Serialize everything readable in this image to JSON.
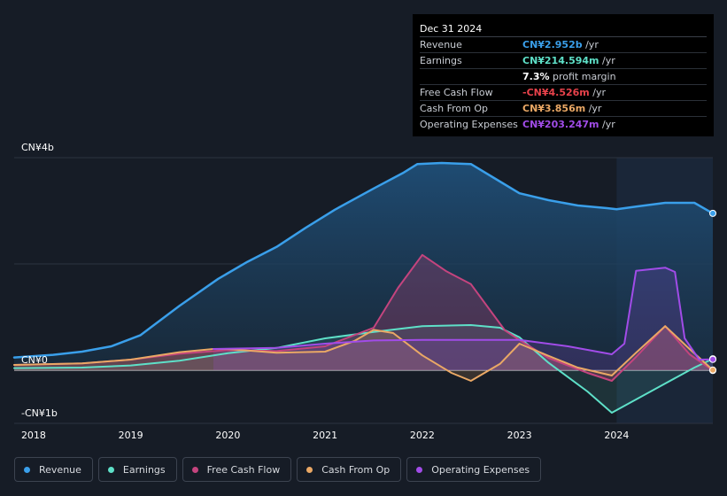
{
  "chart_data": {
    "type": "area",
    "title": "",
    "xlabel": "",
    "ylabel": "",
    "xlim": [
      2017.8,
      2024.99
    ],
    "ylim": [
      -1.0,
      4.0
    ],
    "y_unit": "CN¥ billions",
    "y_tick_labels": [
      {
        "value": 4,
        "label": "CN¥4b"
      },
      {
        "value": 0,
        "label": "CN¥0"
      },
      {
        "value": -1,
        "label": "-CN¥1b"
      }
    ],
    "x_ticks": [
      2018,
      2019,
      2020,
      2021,
      2022,
      2023,
      2024
    ],
    "x_tick_labels": [
      "2018",
      "2019",
      "2020",
      "2021",
      "2022",
      "2023",
      "2024"
    ],
    "forecast_shade_start": 2024.0,
    "series": [
      {
        "name": "Revenue",
        "color": "#3a9fea",
        "x": [
          2017.8,
          2018.2,
          2018.5,
          2018.8,
          2019.1,
          2019.5,
          2019.9,
          2020.2,
          2020.5,
          2020.8,
          2021.1,
          2021.5,
          2021.8,
          2021.95,
          2022.2,
          2022.5,
          2022.8,
          2023.0,
          2023.3,
          2023.6,
          2023.9,
          2024.0,
          2024.2,
          2024.5,
          2024.8,
          2024.99
        ],
        "values": [
          0.24,
          0.29,
          0.35,
          0.45,
          0.66,
          1.21,
          1.72,
          2.04,
          2.32,
          2.68,
          3.02,
          3.42,
          3.71,
          3.88,
          3.9,
          3.88,
          3.55,
          3.33,
          3.2,
          3.1,
          3.05,
          3.03,
          3.08,
          3.15,
          3.15,
          2.952
        ]
      },
      {
        "name": "Earnings",
        "color": "#5ee0c8",
        "x": [
          2017.8,
          2018.5,
          2019.0,
          2019.5,
          2020.0,
          2020.5,
          2021.0,
          2021.5,
          2022.0,
          2022.5,
          2022.8,
          2023.0,
          2023.3,
          2023.7,
          2023.95,
          2024.2,
          2024.5,
          2024.8,
          2024.99
        ],
        "values": [
          0.04,
          0.05,
          0.09,
          0.18,
          0.32,
          0.42,
          0.6,
          0.72,
          0.83,
          0.85,
          0.8,
          0.62,
          0.14,
          -0.4,
          -0.8,
          -0.55,
          -0.25,
          0.05,
          0.214594
        ]
      },
      {
        "name": "Free Cash Flow",
        "color": "#c4447e",
        "x": [
          2017.8,
          2018.5,
          2019.0,
          2019.5,
          2020.0,
          2020.5,
          2021.0,
          2021.5,
          2021.75,
          2022.0,
          2022.25,
          2022.5,
          2022.85,
          2023.0,
          2023.3,
          2023.7,
          2023.95,
          2024.2,
          2024.5,
          2024.75,
          2024.99
        ],
        "values": [
          0.1,
          0.13,
          0.2,
          0.31,
          0.38,
          0.36,
          0.45,
          0.8,
          1.55,
          2.17,
          1.86,
          1.62,
          0.75,
          0.57,
          0.23,
          -0.05,
          -0.2,
          0.25,
          0.83,
          0.3,
          -0.004526
        ]
      },
      {
        "name": "Cash From Op",
        "color": "#eaa865",
        "x": [
          2017.8,
          2018.5,
          2019.0,
          2019.5,
          2019.85,
          2020.0,
          2020.5,
          2021.0,
          2021.3,
          2021.5,
          2021.7,
          2022.0,
          2022.3,
          2022.5,
          2022.8,
          2023.0,
          2023.3,
          2023.6,
          2023.95,
          2024.2,
          2024.5,
          2024.75,
          2024.99
        ],
        "values": [
          0.1,
          0.13,
          0.2,
          0.34,
          0.4,
          0.4,
          0.33,
          0.35,
          0.55,
          0.76,
          0.7,
          0.28,
          -0.05,
          -0.2,
          0.12,
          0.5,
          0.27,
          0.05,
          -0.1,
          0.33,
          0.83,
          0.4,
          0.003856
        ]
      },
      {
        "name": "Operating Expenses",
        "color": "#a14ce8",
        "x": [
          2019.85,
          2020.5,
          2021.0,
          2021.5,
          2022.0,
          2022.5,
          2023.0,
          2023.5,
          2023.95,
          2024.08,
          2024.2,
          2024.5,
          2024.6,
          2024.7,
          2024.85,
          2024.99
        ],
        "values": [
          0.4,
          0.42,
          0.5,
          0.56,
          0.57,
          0.57,
          0.57,
          0.45,
          0.3,
          0.5,
          1.87,
          1.93,
          1.85,
          0.6,
          0.2,
          0.203247
        ]
      }
    ],
    "legend": [
      "Revenue",
      "Earnings",
      "Free Cash Flow",
      "Cash From Op",
      "Operating Expenses"
    ]
  },
  "tooltip": {
    "date": "Dec 31 2024",
    "rows": [
      {
        "label": "Revenue",
        "value": "CN¥2.952b",
        "unit": " /yr",
        "color": "#3a9fea"
      },
      {
        "label": "Earnings",
        "value": "CN¥214.594m",
        "unit": " /yr",
        "color": "#5ee0c8"
      },
      {
        "label": "",
        "value": "7.3%",
        "unit": " profit margin",
        "color": "#ffffff"
      },
      {
        "label": "Free Cash Flow",
        "value": "-CN¥4.526m",
        "unit": " /yr",
        "color": "#e8424b"
      },
      {
        "label": "Cash From Op",
        "value": "CN¥3.856m",
        "unit": " /yr",
        "color": "#eaa865"
      },
      {
        "label": "Operating Expenses",
        "value": "CN¥203.247m",
        "unit": " /yr",
        "color": "#a14ce8"
      }
    ]
  },
  "legend_items": [
    {
      "label": "Revenue",
      "color": "#3a9fea"
    },
    {
      "label": "Earnings",
      "color": "#5ee0c8"
    },
    {
      "label": "Free Cash Flow",
      "color": "#c4447e"
    },
    {
      "label": "Cash From Op",
      "color": "#eaa865"
    },
    {
      "label": "Operating Expenses",
      "color": "#a14ce8"
    }
  ]
}
